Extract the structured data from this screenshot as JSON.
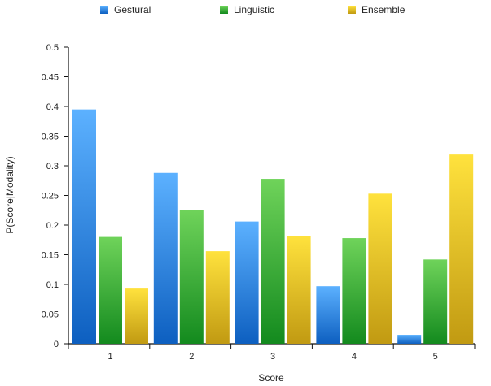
{
  "chart_data": {
    "type": "bar",
    "title": "",
    "xlabel": "Score",
    "ylabel": "P(Score|Modality)",
    "categories": [
      "1",
      "2",
      "3",
      "4",
      "5"
    ],
    "series": [
      {
        "name": "Gestural",
        "values": [
          0.395,
          0.288,
          0.206,
          0.097,
          0.015
        ]
      },
      {
        "name": "Linguistic",
        "values": [
          0.18,
          0.225,
          0.278,
          0.178,
          0.142
        ]
      },
      {
        "name": "Ensemble",
        "values": [
          0.093,
          0.156,
          0.182,
          0.253,
          0.319
        ]
      }
    ],
    "ylim": [
      0,
      0.5
    ],
    "yticks": [
      "0",
      "0.05",
      "0.1",
      "0.15",
      "0.2",
      "0.25",
      "0.3",
      "0.35",
      "0.4",
      "0.45",
      "0.5"
    ],
    "grid": false,
    "legend_position": "top",
    "colors": {
      "Gestural": {
        "light": "#5cb1ff",
        "dark": "#0d5fc0"
      },
      "Linguistic": {
        "light": "#6fd35a",
        "dark": "#138a1e"
      },
      "Ensemble": {
        "light": "#ffe23d",
        "dark": "#c19a12"
      }
    }
  }
}
